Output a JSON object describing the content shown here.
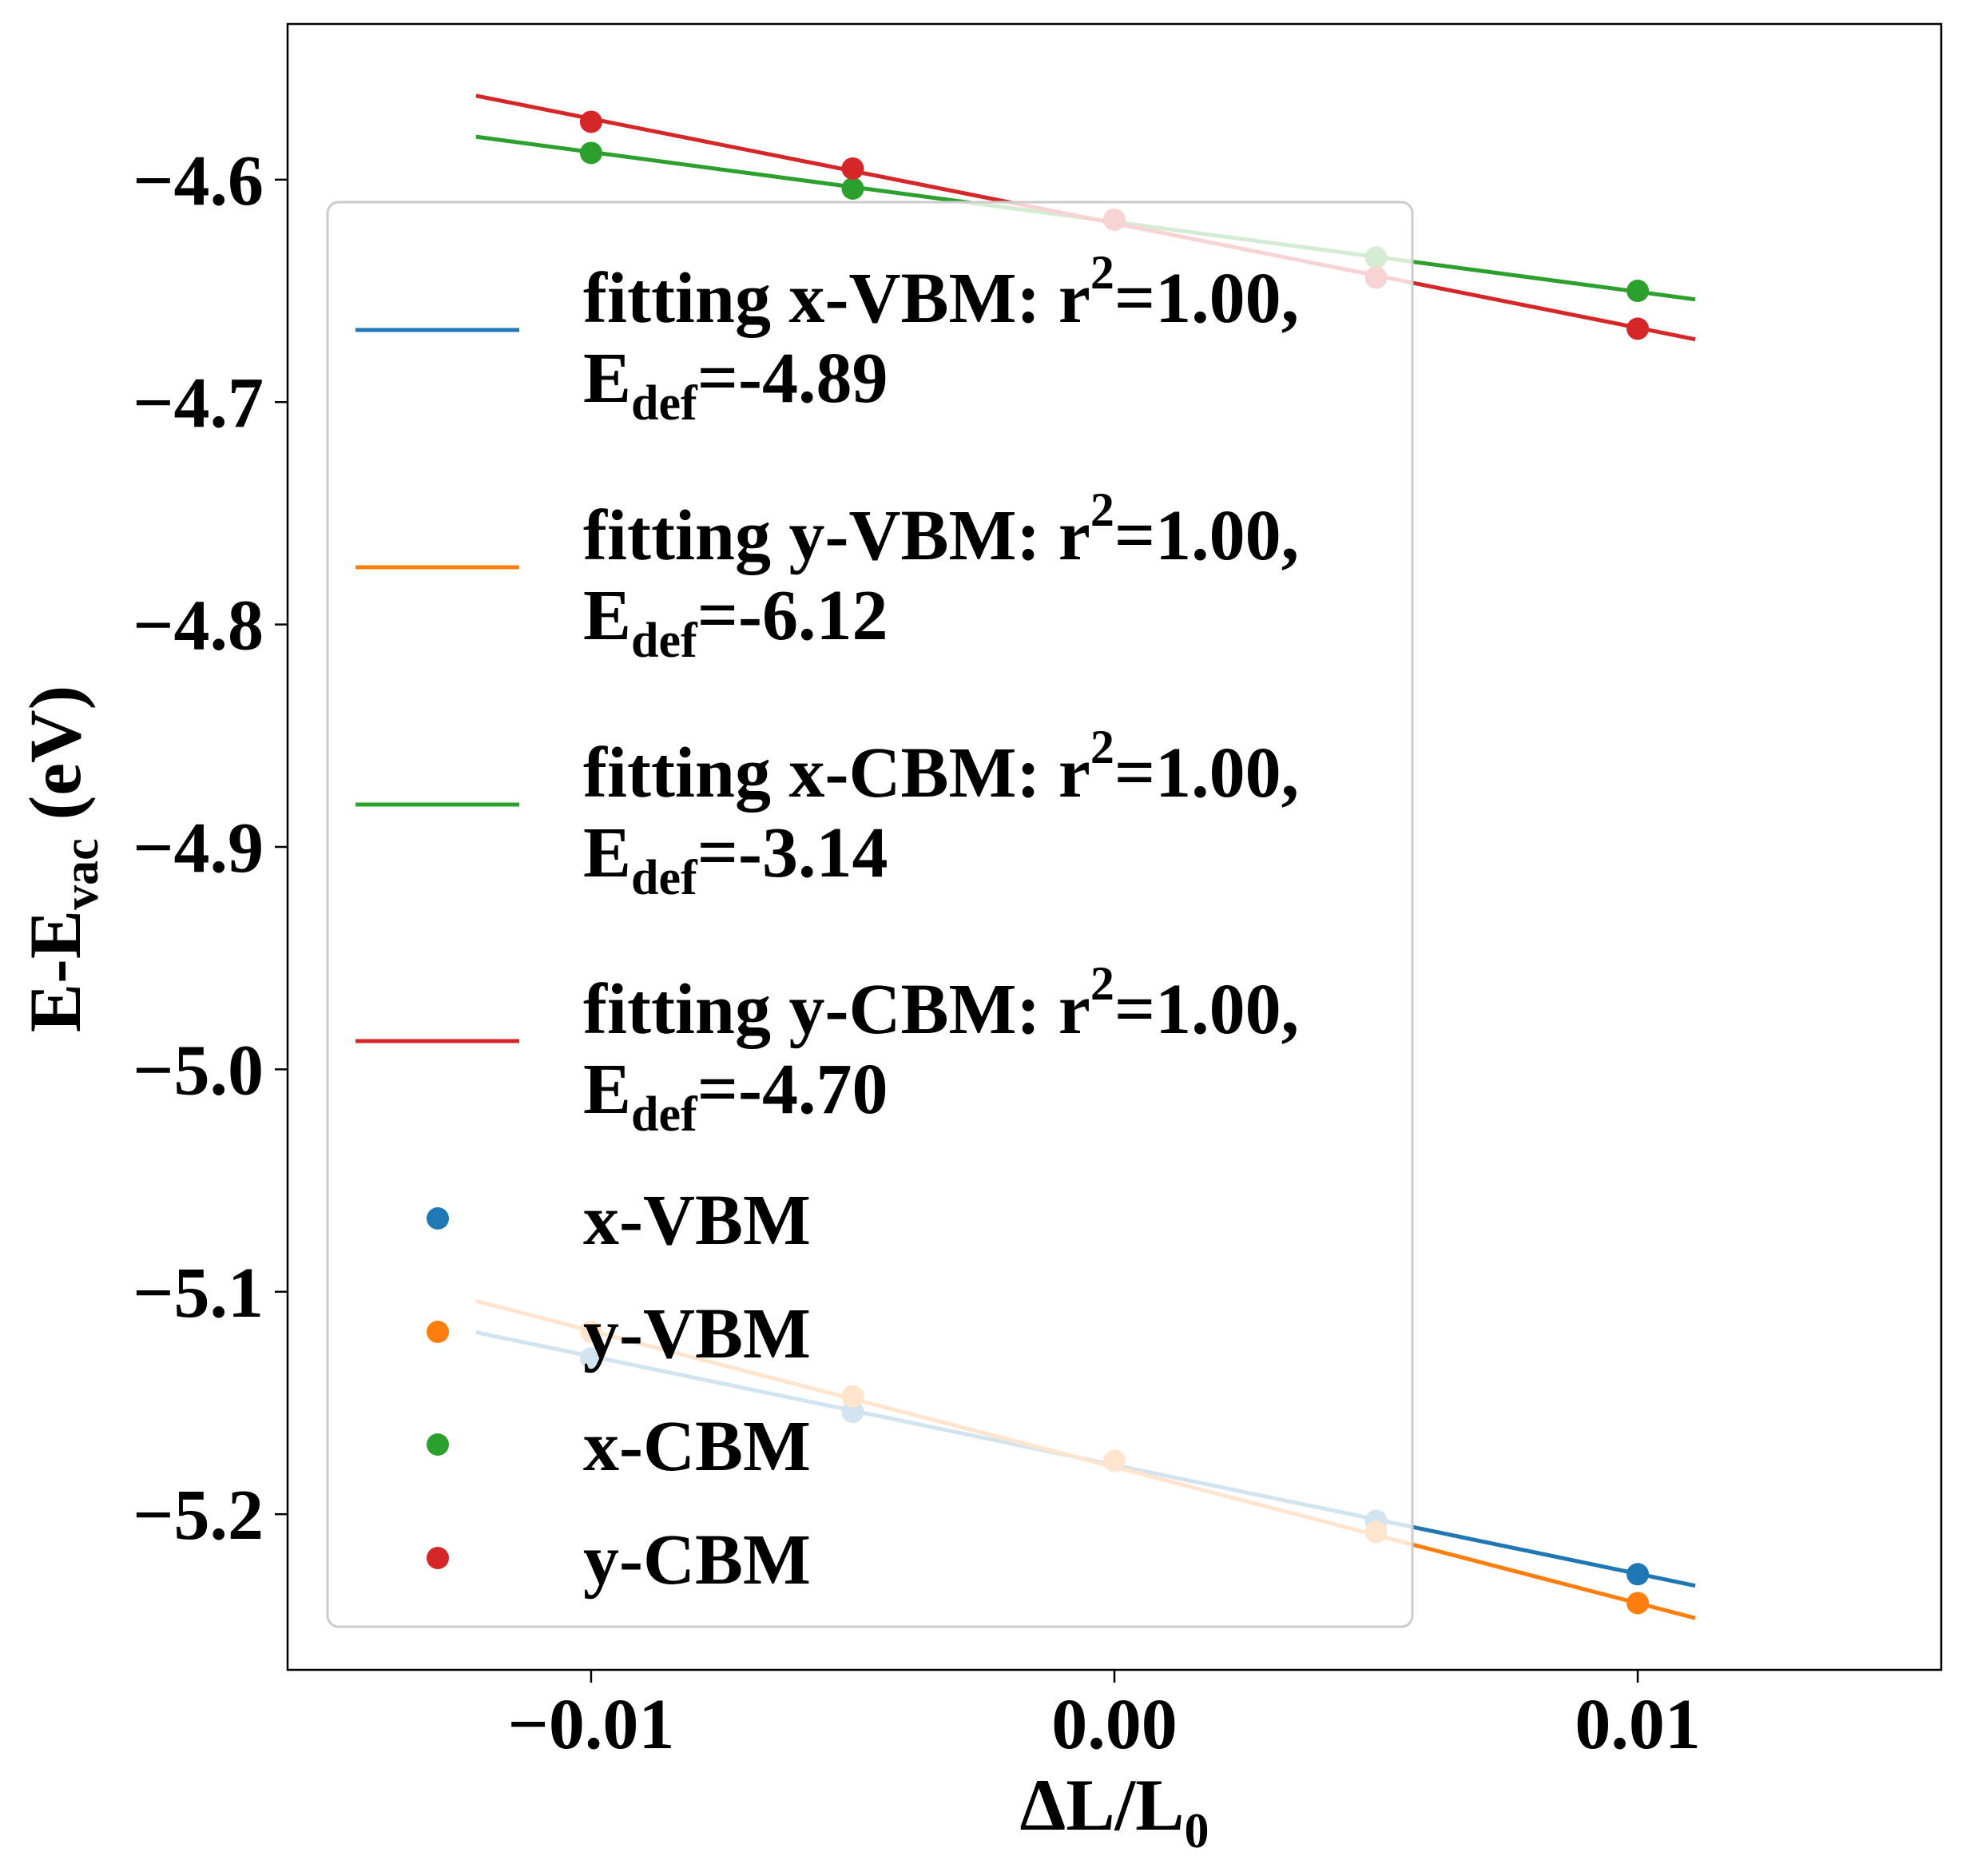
{
  "chart_data": {
    "type": "scatter",
    "xlabel": {
      "main": "ΔL/L",
      "sub": "0"
    },
    "ylabel": {
      "pre": "E-E",
      "sub": "vac",
      "post": " (eV)"
    },
    "xlim": [
      -0.0158,
      0.0158
    ],
    "ylim": [
      -5.27,
      -4.53
    ],
    "x_ticks": [
      {
        "value": -0.01,
        "label": "−0.01"
      },
      {
        "value": 0.0,
        "label": "0.00"
      },
      {
        "value": 0.01,
        "label": "0.01"
      }
    ],
    "y_ticks": [
      {
        "value": -4.6,
        "label": "−4.6"
      },
      {
        "value": -4.7,
        "label": "−4.7"
      },
      {
        "value": -4.8,
        "label": "−4.8"
      },
      {
        "value": -4.9,
        "label": "−4.9"
      },
      {
        "value": -5.0,
        "label": "−5.0"
      },
      {
        "value": -5.1,
        "label": "−5.1"
      },
      {
        "value": -5.2,
        "label": "−5.2"
      }
    ],
    "fit_range": [
      -0.0122,
      0.0111
    ],
    "x": [
      -0.01,
      -0.005,
      0.0,
      0.005,
      0.01
    ],
    "series": [
      {
        "name": "x-VBM",
        "color": "#1f77b4",
        "values": [
          -5.13,
          -5.154,
          -5.176,
          -5.203,
          -5.227
        ],
        "fit_line": {
          "slope": -4.89,
          "intercept": -5.1779
        },
        "fit_label_line1": "fitting x-VBM: r",
        "fit_label_sup": "2",
        "fit_label_tail": "=1.00,",
        "edef_value": "=-4.89"
      },
      {
        "name": "y-VBM",
        "color": "#ff7f0e",
        "values": [
          -5.118,
          -5.147,
          -5.176,
          -5.208,
          -5.24
        ],
        "fit_line": {
          "slope": -6.12,
          "intercept": -5.1788
        },
        "fit_label_line1": "fitting y-VBM: r",
        "fit_label_sup": "2",
        "fit_label_tail": "=1.00,",
        "edef_value": "=-6.12"
      },
      {
        "name": "x-CBM",
        "color": "#2ca02c",
        "values": [
          -4.588,
          -4.604,
          -4.618,
          -4.635,
          -4.65
        ],
        "fit_line": {
          "slope": -3.14,
          "intercept": -4.619
        },
        "fit_label_line1": "fitting x-CBM: r",
        "fit_label_sup": "2",
        "fit_label_tail": "=1.00,",
        "edef_value": "=-3.14"
      },
      {
        "name": "y-CBM",
        "color": "#d62728",
        "values": [
          -4.574,
          -4.595,
          -4.618,
          -4.644,
          -4.667
        ],
        "fit_line": {
          "slope": -4.7,
          "intercept": -4.6196
        },
        "fit_label_line1": "fitting y-CBM: r",
        "fit_label_sup": "2",
        "fit_label_tail": "=1.00,",
        "edef_value": "=-4.70"
      }
    ],
    "edef_prefix": "E",
    "edef_sub": "def",
    "legend_location": "center-left"
  }
}
